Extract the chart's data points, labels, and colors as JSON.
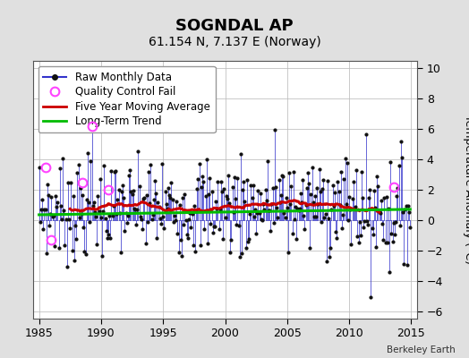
{
  "title": "SOGNDAL AP",
  "subtitle": "61.154 N, 7.137 E (Norway)",
  "ylabel": "Temperature Anomaly (°C)",
  "attribution": "Berkeley Earth",
  "xlim": [
    1984.5,
    2015.5
  ],
  "ylim": [
    -6.5,
    10.5
  ],
  "yticks": [
    -6,
    -4,
    -2,
    0,
    2,
    4,
    6,
    8,
    10
  ],
  "xticks": [
    1985,
    1990,
    1995,
    2000,
    2005,
    2010,
    2015
  ],
  "bg_color": "#e0e0e0",
  "plot_bg_color": "#ffffff",
  "raw_color": "#3333cc",
  "raw_dot_color": "#111111",
  "ma_color": "#cc0000",
  "trend_color": "#00bb00",
  "qc_color": "#ff44ff",
  "legend_fontsize": 8.5,
  "title_fontsize": 13,
  "subtitle_fontsize": 10
}
